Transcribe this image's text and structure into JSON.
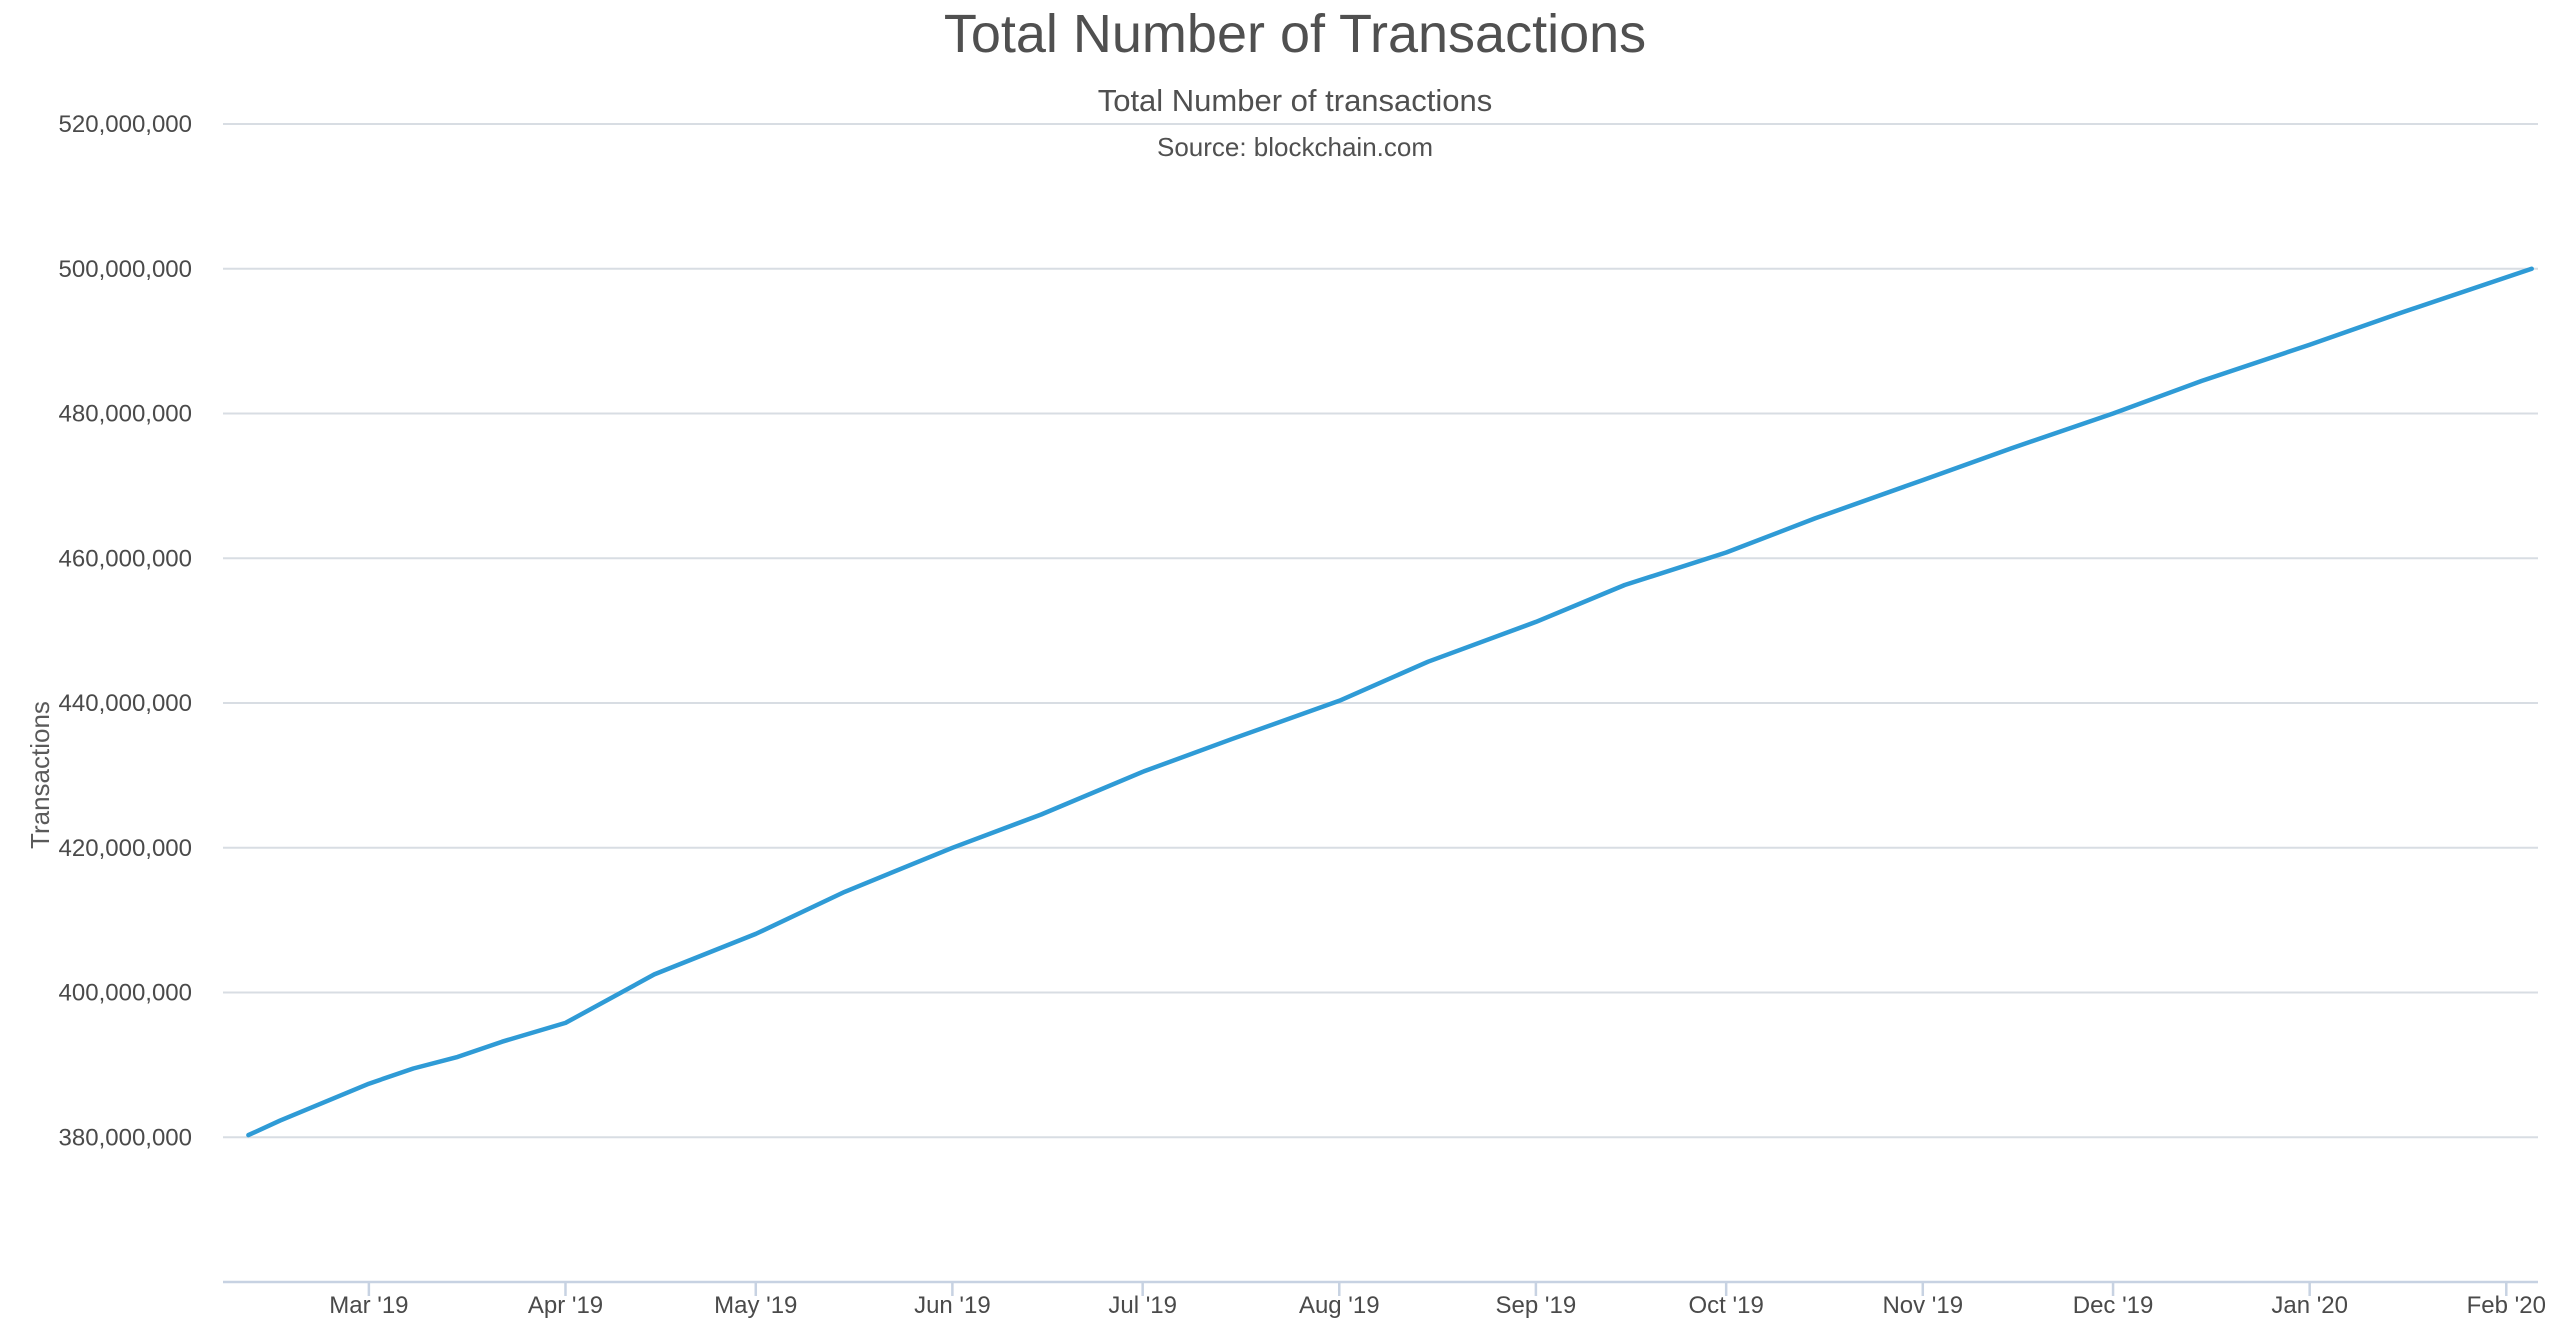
{
  "chart_data": {
    "type": "line",
    "title": "Total Number of Transactions",
    "subtitle": "Total Number of transactions",
    "source": "Source: blockchain.com",
    "xlabel": "",
    "ylabel": "Transactions",
    "xlim": [
      "2019-02-06",
      "2020-02-06"
    ],
    "ylim": [
      360000000,
      520000000
    ],
    "ytick_values": [
      380000000,
      400000000,
      420000000,
      440000000,
      460000000,
      480000000,
      500000000,
      520000000
    ],
    "ytick_labels": [
      "380,000,000",
      "400,000,000",
      "420,000,000",
      "440,000,000",
      "460,000,000",
      "480,000,000",
      "500,000,000",
      "520,000,000"
    ],
    "xtick_dates": [
      "2019-03-01",
      "2019-04-01",
      "2019-05-01",
      "2019-06-01",
      "2019-07-01",
      "2019-08-01",
      "2019-09-01",
      "2019-10-01",
      "2019-11-01",
      "2019-12-01",
      "2020-01-01",
      "2020-02-01"
    ],
    "xtick_labels": [
      "Mar '19",
      "Apr '19",
      "May '19",
      "Jun '19",
      "Jul '19",
      "Aug '19",
      "Sep '19",
      "Oct '19",
      "Nov '19",
      "Dec '19",
      "Jan '20",
      "Feb '20"
    ],
    "grid": true,
    "legend": "none",
    "series_color": "#2f9bd6",
    "series": [
      {
        "x": [
          "2019-02-10",
          "2019-02-15",
          "2019-03-01",
          "2019-03-08",
          "2019-03-15",
          "2019-03-22",
          "2019-04-01",
          "2019-04-15",
          "2019-05-01",
          "2019-05-15",
          "2019-06-01",
          "2019-06-15",
          "2019-07-01",
          "2019-07-15",
          "2019-08-01",
          "2019-08-15",
          "2019-09-01",
          "2019-09-15",
          "2019-10-01",
          "2019-10-15",
          "2019-11-01",
          "2019-11-15",
          "2019-12-01",
          "2019-12-15",
          "2020-01-01",
          "2020-01-15",
          "2020-02-05"
        ],
        "values": [
          380300000,
          382300000,
          387400000,
          389500000,
          391100000,
          393200000,
          395800000,
          402500000,
          408100000,
          413900000,
          420000000,
          424600000,
          430500000,
          435000000,
          440300000,
          445700000,
          451200000,
          456300000,
          460800000,
          465500000,
          470800000,
          475200000,
          480000000,
          484500000,
          489500000,
          493800000,
          500000000
        ]
      }
    ]
  }
}
